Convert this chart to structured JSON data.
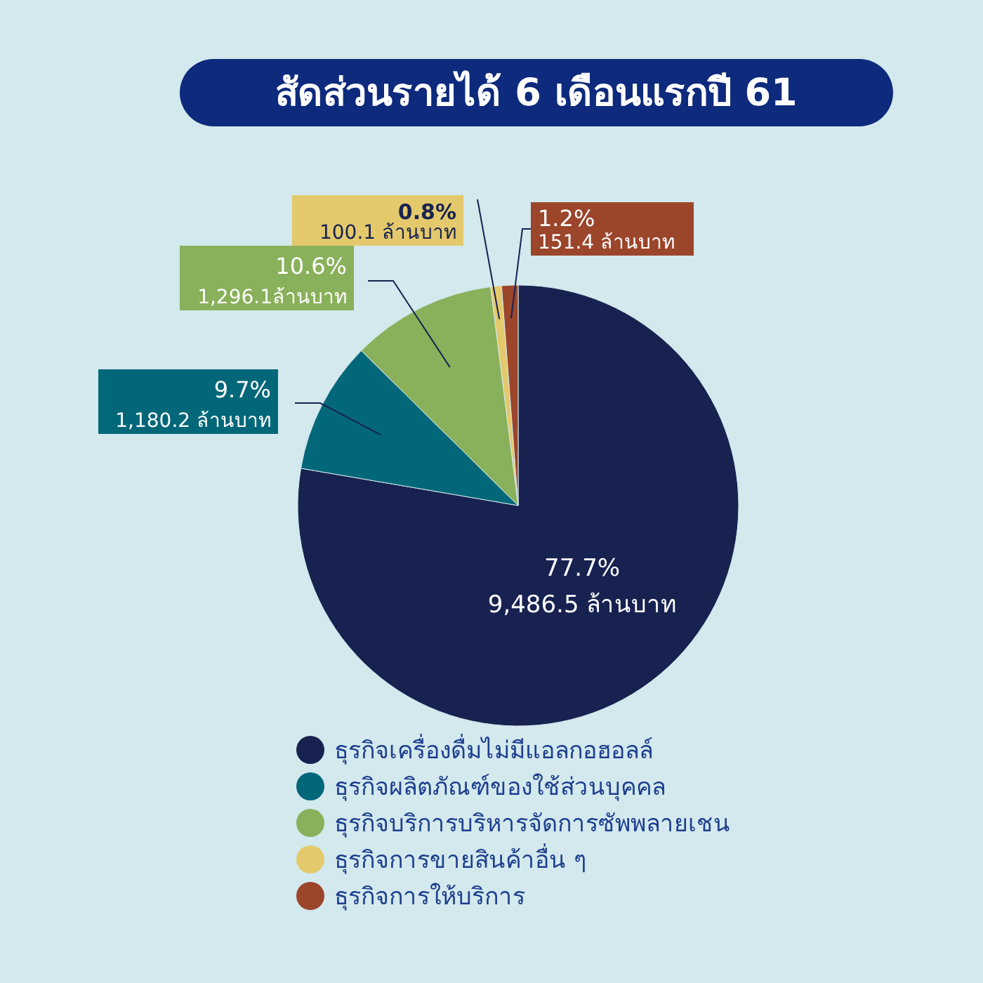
{
  "chart_data": {
    "type": "pie",
    "title": "สัดส่วนรายได้ 6 เดือนแรกปี 61",
    "categories": [
      "ธุรกิจเครื่องดื่มไม่มีแอลกอฮอลล์",
      "ธุรกิจผลิตภัณฑ์ของใช้ส่วนบุคคล",
      "ธุรกิจบริการบริหารจัดการซัพพลายเชน",
      "ธุรกิจการขายสินค้าอื่น ๆ",
      "ธุรกิจการให้บริการ"
    ],
    "values": [
      77.7,
      9.7,
      10.6,
      0.8,
      1.2
    ],
    "colors": [
      "#172251",
      "#03677a",
      "#89b05a",
      "#e4c96c",
      "#9b452b"
    ],
    "value_labels": [
      "77.7%",
      "9.7%",
      "10.6%",
      "0.8%",
      "1.2%"
    ],
    "annotations": [
      "9,486.5 ล้านบาท",
      "1,180.2 ล้านบาท",
      "1,296.1ล้านบาท",
      "100.1 ล้านบาท",
      "151.4 ล้านบาท"
    ],
    "legend": "bottom"
  }
}
